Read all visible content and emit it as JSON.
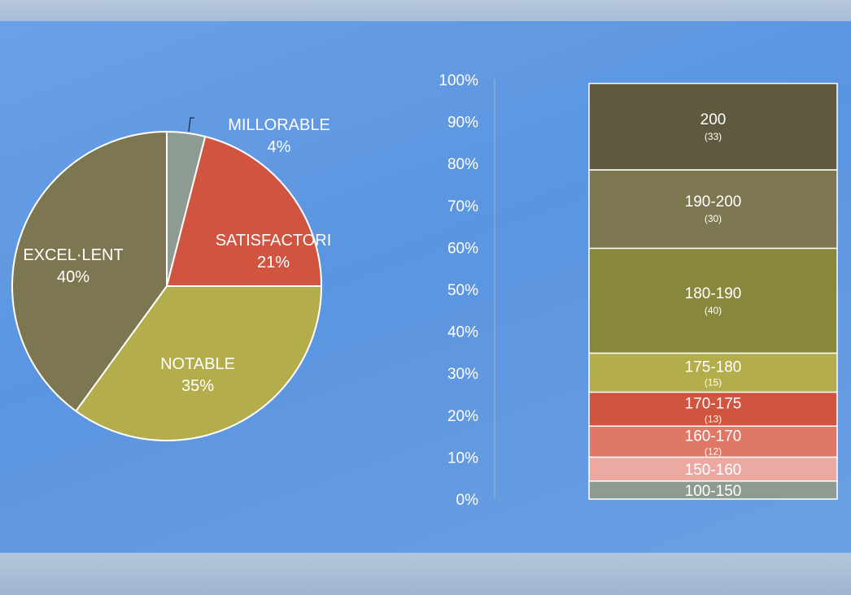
{
  "chart_data": [
    {
      "type": "pie",
      "slices": [
        {
          "label": "MILLORABLE",
          "value": 4,
          "value_text": "4%",
          "color": "#8e9b93"
        },
        {
          "label": "SATISFACTORI",
          "value": 21,
          "value_text": "21%",
          "color": "#d0543f"
        },
        {
          "label": "NOTABLE",
          "value": 35,
          "value_text": "35%",
          "color": "#b3ad4c"
        },
        {
          "label": "EXCEL·LENT",
          "value": 40,
          "value_text": "40%",
          "color": "#7d7751"
        }
      ]
    },
    {
      "type": "bar",
      "stacked": true,
      "ylim": [
        0,
        100
      ],
      "y_ticks": [
        "0%",
        "10%",
        "20%",
        "30%",
        "40%",
        "50%",
        "60%",
        "70%",
        "80%",
        "90%",
        "100%"
      ],
      "segments": [
        {
          "label": "100-150",
          "count": null,
          "percent": 4.3,
          "color": "#8e9b93"
        },
        {
          "label": "150-160",
          "count": null,
          "percent": 5.7,
          "color": "#eba9a2"
        },
        {
          "label": "160-170",
          "count": "(12)",
          "percent": 7.4,
          "color": "#e07868"
        },
        {
          "label": "170-175",
          "count": "(13)",
          "percent": 8.1,
          "color": "#d0543f"
        },
        {
          "label": "175-180",
          "count": "(15)",
          "percent": 9.3,
          "color": "#b3ad4c"
        },
        {
          "label": "180-190",
          "count": "(40)",
          "percent": 25.0,
          "color": "#88883c"
        },
        {
          "label": "190-200",
          "count": "(30)",
          "percent": 18.7,
          "color": "#7d7751"
        },
        {
          "label": "200",
          "count": "(33)",
          "percent": 20.6,
          "color": "#5f5a3f"
        }
      ]
    }
  ]
}
